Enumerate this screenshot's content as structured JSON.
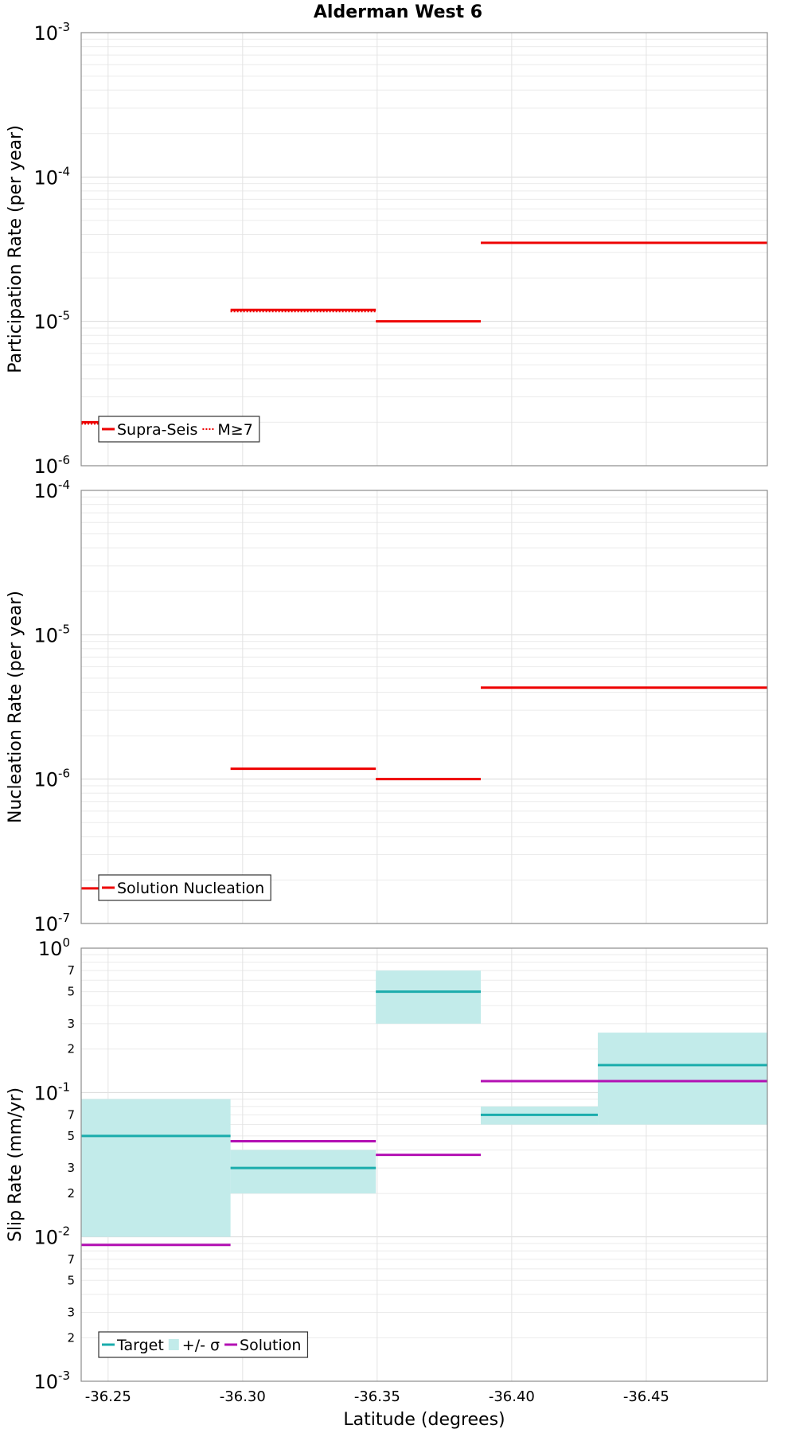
{
  "chart_data": {
    "type": "line",
    "title": "Alderman West 6",
    "xlabel": "Latitude (degrees)",
    "xlim": [
      -36.24,
      -36.495
    ],
    "xticks": [
      -36.25,
      -36.3,
      -36.35,
      -36.4,
      -36.45
    ],
    "xtick_labels": [
      "-36.25",
      "-36.30",
      "-36.35",
      "-36.40",
      "-36.45"
    ],
    "panels": [
      {
        "ylabel": "Participation Rate (per year)",
        "yscale": "log",
        "ylim_exp": [
          -6,
          -3
        ],
        "major_ticks": [
          {
            "exp": -3,
            "base": "10",
            "sup": "-3"
          },
          {
            "exp": -4,
            "base": "10",
            "sup": "-4"
          },
          {
            "exp": -5,
            "base": "10",
            "sup": "-5"
          },
          {
            "exp": -6,
            "base": "10",
            "sup": "-6"
          }
        ],
        "minor_labels": [],
        "bands": [],
        "series": [
          {
            "name": "Supra-Seis",
            "color": "#ee0000",
            "style": "solid",
            "segments": [
              {
                "x0": -36.24,
                "x1": -36.2955,
                "y": 2e-06
              },
              {
                "x0": -36.2955,
                "x1": -36.3495,
                "y": 1.2e-05
              },
              {
                "x0": -36.3495,
                "x1": -36.3885,
                "y": 1e-05
              },
              {
                "x0": -36.3885,
                "x1": -36.495,
                "y": 3.5e-05
              }
            ]
          },
          {
            "name": "M≥7",
            "color": "#ee0000",
            "style": "dotted",
            "segments": [
              {
                "x0": -36.24,
                "x1": -36.2955,
                "y": 1.95e-06
              },
              {
                "x0": -36.2955,
                "x1": -36.3495,
                "y": 1.17e-05
              }
            ]
          }
        ],
        "legend": [
          {
            "label": "Supra-Seis",
            "kind": "line",
            "color": "#ee0000",
            "style": "solid"
          },
          {
            "label": "M≥7",
            "kind": "line",
            "color": "#ee0000",
            "style": "dotted"
          }
        ]
      },
      {
        "ylabel": "Nucleation Rate (per year)",
        "yscale": "log",
        "ylim_exp": [
          -7,
          -4
        ],
        "major_ticks": [
          {
            "exp": -4,
            "base": "10",
            "sup": "-4"
          },
          {
            "exp": -5,
            "base": "10",
            "sup": "-5"
          },
          {
            "exp": -6,
            "base": "10",
            "sup": "-6"
          },
          {
            "exp": -7,
            "base": "10",
            "sup": "-7"
          }
        ],
        "minor_labels": [],
        "bands": [],
        "series": [
          {
            "name": "Solution Nucleation",
            "color": "#ee0000",
            "style": "solid",
            "segments": [
              {
                "x0": -36.24,
                "x1": -36.2955,
                "y": 1.75e-07
              },
              {
                "x0": -36.2955,
                "x1": -36.3495,
                "y": 1.18e-06
              },
              {
                "x0": -36.3495,
                "x1": -36.3885,
                "y": 1e-06
              },
              {
                "x0": -36.3885,
                "x1": -36.495,
                "y": 4.3e-06
              }
            ]
          }
        ],
        "legend": [
          {
            "label": "Solution Nucleation",
            "kind": "line",
            "color": "#ee0000",
            "style": "solid"
          }
        ]
      },
      {
        "ylabel": "Slip Rate (mm/yr)",
        "yscale": "log",
        "ylim_exp": [
          -3,
          0
        ],
        "major_ticks": [
          {
            "exp": 0,
            "base": "10",
            "sup": "0"
          },
          {
            "exp": -1,
            "base": "10",
            "sup": "-1"
          },
          {
            "exp": -2,
            "base": "10",
            "sup": "-2"
          },
          {
            "exp": -3,
            "base": "10",
            "sup": "-3"
          }
        ],
        "minor_labels": [
          {
            "value": 0.7,
            "label": "7"
          },
          {
            "value": 0.5,
            "label": "5"
          },
          {
            "value": 0.3,
            "label": "3"
          },
          {
            "value": 0.2,
            "label": "2"
          },
          {
            "value": 0.07,
            "label": "7"
          },
          {
            "value": 0.05,
            "label": "5"
          },
          {
            "value": 0.03,
            "label": "3"
          },
          {
            "value": 0.02,
            "label": "2"
          },
          {
            "value": 0.007,
            "label": "7"
          },
          {
            "value": 0.005,
            "label": "5"
          },
          {
            "value": 0.003,
            "label": "3"
          },
          {
            "value": 0.002,
            "label": "2"
          }
        ],
        "bands": [
          {
            "name": "+/- σ",
            "color": "#c2ebea",
            "segments": [
              {
                "x0": -36.24,
                "x1": -36.2955,
                "y0": 0.01,
                "y1": 0.09
              },
              {
                "x0": -36.2955,
                "x1": -36.3495,
                "y0": 0.02,
                "y1": 0.04
              },
              {
                "x0": -36.3495,
                "x1": -36.3885,
                "y0": 0.3,
                "y1": 0.7
              },
              {
                "x0": -36.3885,
                "x1": -36.432,
                "y0": 0.06,
                "y1": 0.08
              },
              {
                "x0": -36.432,
                "x1": -36.495,
                "y0": 0.06,
                "y1": 0.26
              }
            ]
          }
        ],
        "series": [
          {
            "name": "Target",
            "color": "#1aacac",
            "style": "solid",
            "segments": [
              {
                "x0": -36.24,
                "x1": -36.2955,
                "y": 0.05
              },
              {
                "x0": -36.2955,
                "x1": -36.3495,
                "y": 0.03
              },
              {
                "x0": -36.3495,
                "x1": -36.3885,
                "y": 0.5
              },
              {
                "x0": -36.3885,
                "x1": -36.432,
                "y": 0.07
              },
              {
                "x0": -36.432,
                "x1": -36.495,
                "y": 0.155
              }
            ]
          },
          {
            "name": "Solution",
            "color": "#b310b3",
            "style": "solid",
            "segments": [
              {
                "x0": -36.24,
                "x1": -36.2955,
                "y": 0.0088
              },
              {
                "x0": -36.2955,
                "x1": -36.3495,
                "y": 0.046
              },
              {
                "x0": -36.3495,
                "x1": -36.3885,
                "y": 0.037
              },
              {
                "x0": -36.3885,
                "x1": -36.495,
                "y": 0.12
              }
            ]
          }
        ],
        "legend": [
          {
            "label": "Target",
            "kind": "line",
            "color": "#1aacac",
            "style": "solid"
          },
          {
            "label": "+/- σ",
            "kind": "box",
            "color": "#c2ebea",
            "style": "solid"
          },
          {
            "label": "Solution",
            "kind": "line",
            "color": "#b310b3",
            "style": "solid"
          }
        ]
      }
    ]
  }
}
